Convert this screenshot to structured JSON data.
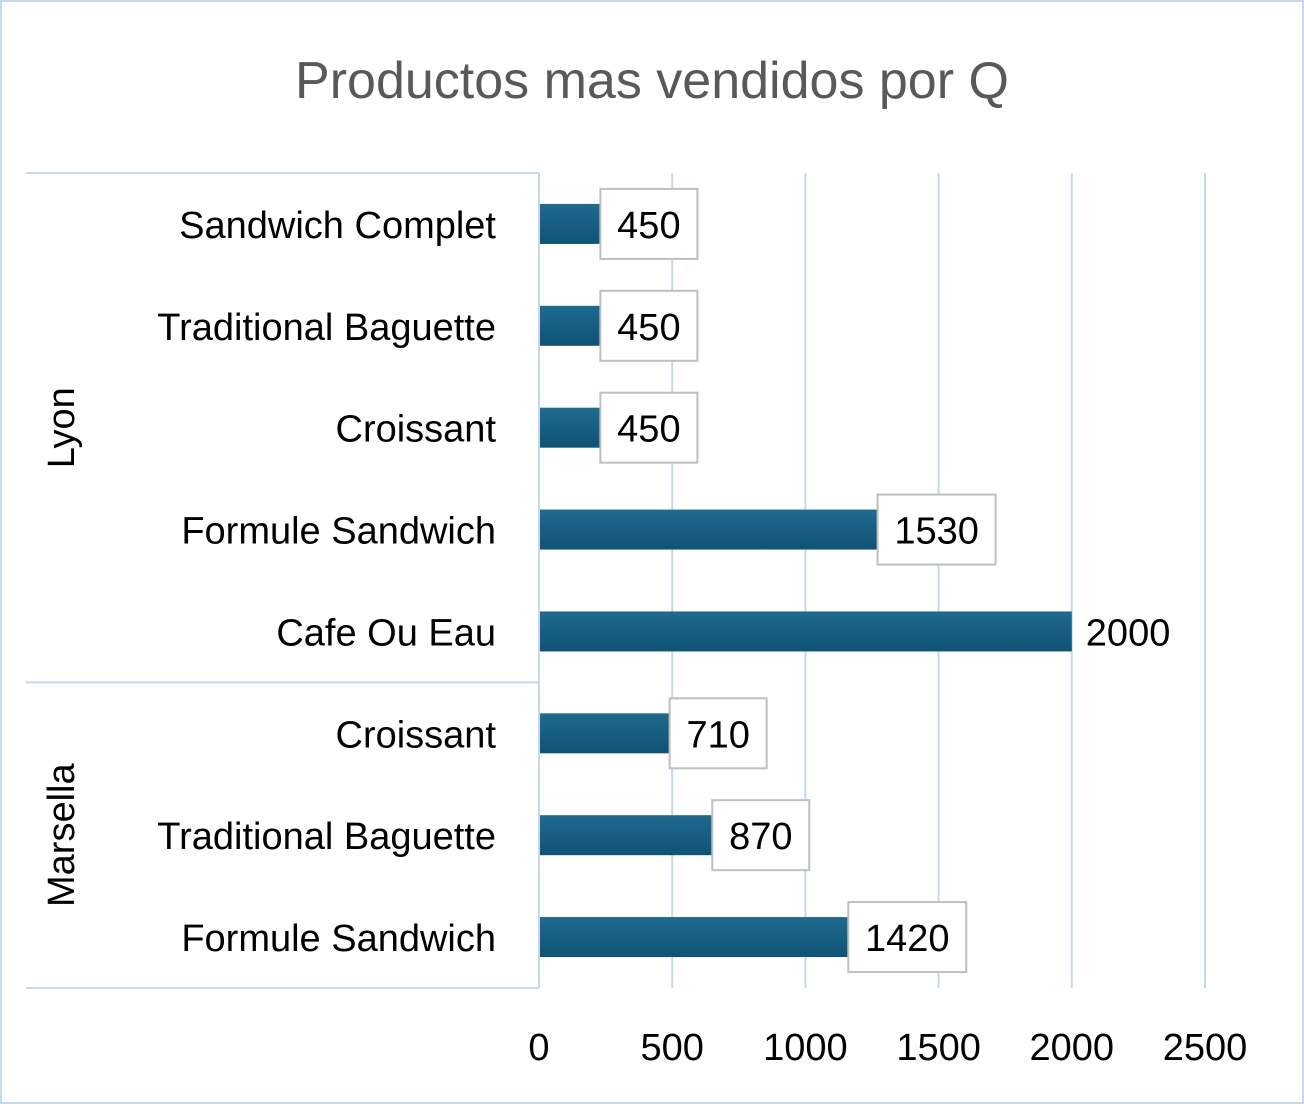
{
  "chart_data": {
    "type": "bar",
    "orientation": "horizontal",
    "title": "Productos mas vendidos por Q",
    "xlabel": "",
    "ylabel": "",
    "xlim": [
      0,
      2500
    ],
    "ticks": [
      "0",
      "500",
      "1000",
      "1500",
      "2000",
      "2500"
    ],
    "grid": true,
    "legend": "none",
    "groups": [
      {
        "name": "Lyon",
        "categories": [
          "Sandwich Complet",
          "Traditional Baguette",
          "Croissant",
          "Formule Sandwich",
          "Cafe Ou Eau"
        ],
        "values": [
          450,
          450,
          450,
          1530,
          2000
        ]
      },
      {
        "name": "Marsella",
        "categories": [
          "Croissant",
          "Traditional Baguette",
          "Formule Sandwich"
        ],
        "values": [
          710,
          870,
          1420
        ]
      }
    ],
    "colors": {
      "bar": "#1f6a8f",
      "bar_dark": "#0f5374",
      "grid": "#c5d9ee",
      "title": "#595959",
      "label_box": "#bfbfbf"
    }
  }
}
